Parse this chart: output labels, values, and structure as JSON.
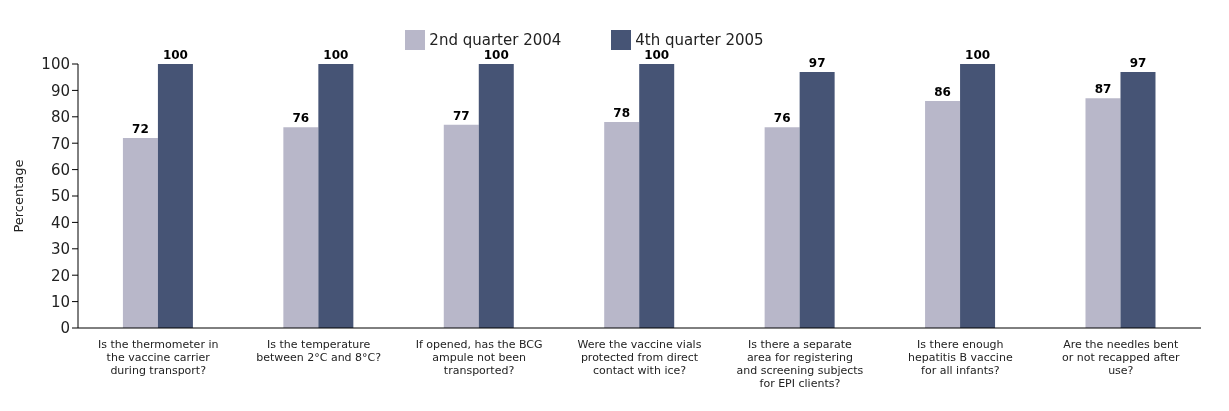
{
  "chart_data": {
    "type": "bar",
    "ylabel": "Percentage",
    "categories": [
      "Is the thermometer in the vaccine carrier during transport?",
      "Is the temperature between 2°C and 8°C?",
      "If opened, has the BCG ampule not been transported?",
      "Were the vaccine vials protected from direct contact with ice?",
      "Is there a separate area for registering and screening subjects for EPI clients?",
      "Is there enough hepatitis B vaccine for all infants?",
      "Are the needles bent or not recapped after use?"
    ],
    "series": [
      {
        "name": "2nd quarter 2004",
        "color": "#b8b7c9",
        "values": [
          72,
          76,
          77,
          78,
          76,
          86,
          87
        ]
      },
      {
        "name": "4th quarter 2005",
        "color": "#465475",
        "values": [
          100,
          100,
          100,
          100,
          97,
          100,
          97
        ]
      }
    ],
    "ylim": [
      0,
      100
    ],
    "yticks": [
      0,
      10,
      20,
      30,
      40,
      50,
      60,
      70,
      80,
      90,
      100
    ],
    "legend": "top",
    "data_labels": true
  }
}
